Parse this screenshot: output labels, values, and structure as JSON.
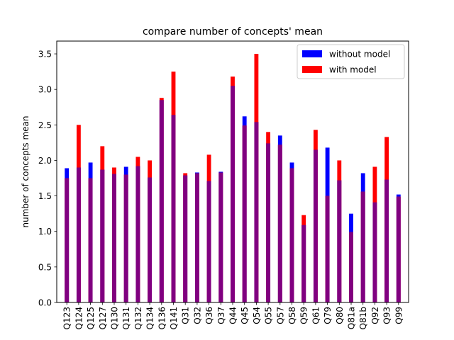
{
  "chart_data": {
    "type": "bar",
    "title": "compare number of concepts' mean",
    "xlabel": "",
    "ylabel": "number of concepts mean",
    "ylim": [
      0,
      3.68
    ],
    "yticks": [
      0.0,
      0.5,
      1.0,
      1.5,
      2.0,
      2.5,
      3.0,
      3.5
    ],
    "ytick_labels": [
      "0.0",
      "0.5",
      "1.0",
      "1.5",
      "2.0",
      "2.5",
      "3.0",
      "3.5"
    ],
    "categories": [
      "Q123",
      "Q124",
      "Q125",
      "Q127",
      "Q130",
      "Q131",
      "Q132",
      "Q134",
      "Q136",
      "Q141",
      "Q31",
      "Q32",
      "Q36",
      "Q37",
      "Q44",
      "Q45",
      "Q54",
      "Q55",
      "Q57",
      "Q58",
      "Q59",
      "Q61",
      "Q79",
      "Q80",
      "Q81a",
      "Q81b",
      "Q92",
      "Q93",
      "Q99"
    ],
    "overlap_color": "#800080",
    "legend_position": "upper right",
    "series": [
      {
        "name": "without model",
        "color": "#0000ff",
        "values": [
          1.89,
          1.9,
          1.97,
          1.87,
          1.81,
          1.91,
          1.92,
          1.76,
          2.85,
          2.64,
          1.79,
          1.83,
          1.71,
          1.84,
          3.05,
          2.62,
          2.54,
          2.24,
          2.35,
          1.97,
          1.09,
          2.15,
          2.18,
          1.72,
          1.25,
          1.82,
          1.41,
          1.73,
          1.52
        ]
      },
      {
        "name": "with model",
        "color": "#ff0000",
        "values": [
          1.75,
          2.5,
          1.75,
          2.2,
          1.9,
          1.8,
          2.05,
          2.0,
          2.88,
          3.25,
          1.82,
          1.82,
          2.08,
          1.83,
          3.18,
          2.49,
          3.5,
          2.4,
          2.22,
          1.89,
          1.23,
          2.43,
          1.5,
          2.0,
          0.99,
          1.56,
          1.91,
          2.33,
          1.49
        ]
      }
    ]
  }
}
